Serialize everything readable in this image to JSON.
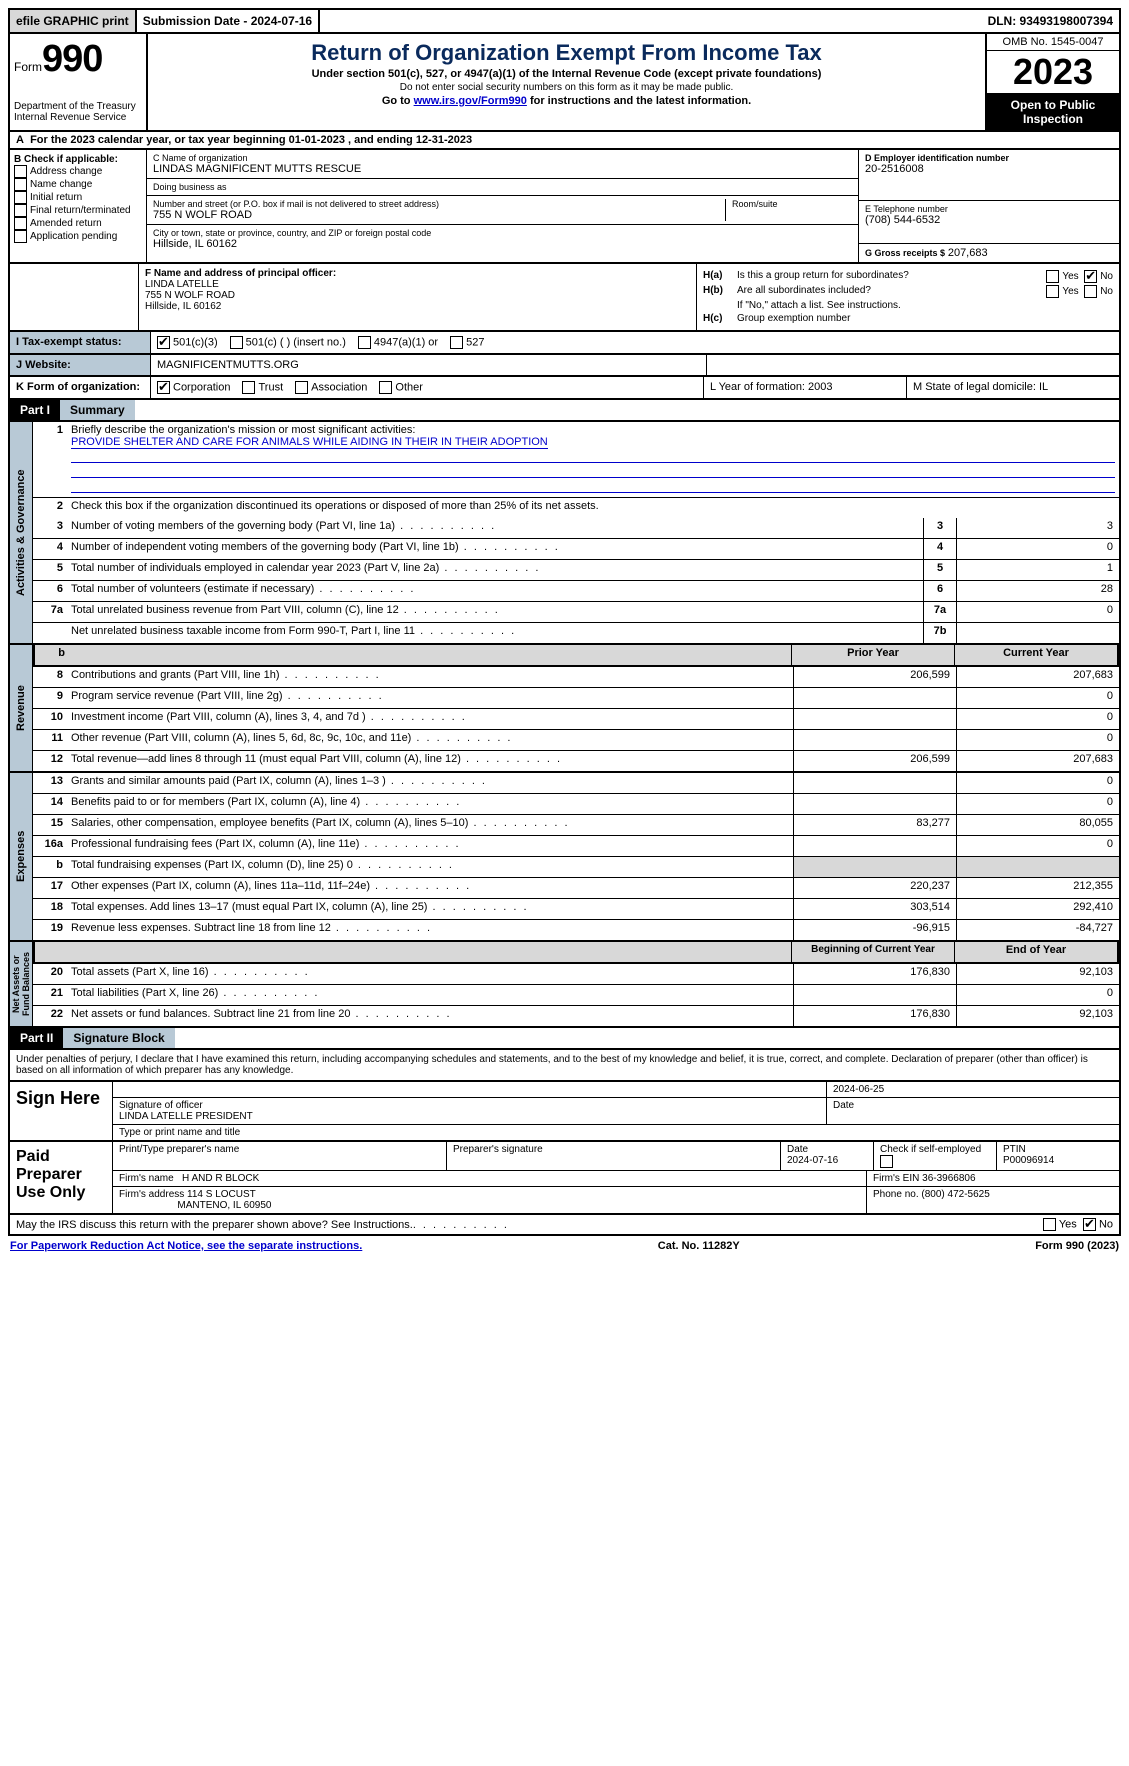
{
  "topbar": {
    "efile": "efile GRAPHIC print",
    "submission": "Submission Date - 2024-07-16",
    "dln": "DLN: 93493198007394"
  },
  "header": {
    "form_label": "Form",
    "form_number": "990",
    "dept": "Department of the Treasury",
    "irs": "Internal Revenue Service",
    "title": "Return of Organization Exempt From Income Tax",
    "sub1": "Under section 501(c), 527, or 4947(a)(1) of the Internal Revenue Code (except private foundations)",
    "sub2": "Do not enter social security numbers on this form as it may be made public.",
    "sub3_pre": "Go to ",
    "sub3_link": "www.irs.gov/Form990",
    "sub3_post": " for instructions and the latest information.",
    "omb": "OMB No. 1545-0047",
    "year": "2023",
    "open": "Open to Public Inspection"
  },
  "line_a": "For the 2023 calendar year, or tax year beginning 01-01-2023   , and ending 12-31-2023",
  "box_b": {
    "title": "B Check if applicable:",
    "opts": [
      "Address change",
      "Name change",
      "Initial return",
      "Final return/terminated",
      "Amended return",
      "Application pending"
    ]
  },
  "box_c": {
    "name_lbl": "C Name of organization",
    "name": "LINDAS MAGNIFICENT MUTTS RESCUE",
    "dba_lbl": "Doing business as",
    "dba": "",
    "street_lbl": "Number and street (or P.O. box if mail is not delivered to street address)",
    "street": "755 N WOLF ROAD",
    "room_lbl": "Room/suite",
    "city_lbl": "City or town, state or province, country, and ZIP or foreign postal code",
    "city": "Hillside, IL  60162"
  },
  "box_d": {
    "lbl": "D Employer identification number",
    "val": "20-2516008"
  },
  "box_e": {
    "lbl": "E Telephone number",
    "val": "(708) 544-6532"
  },
  "box_g": {
    "lbl": "G Gross receipts $",
    "val": "207,683"
  },
  "box_f": {
    "lbl": "F  Name and address of principal officer:",
    "name": "LINDA LATELLE",
    "street": "755 N WOLF ROAD",
    "city": "Hillside, IL  60162"
  },
  "box_h": {
    "a_lbl": "H(a)",
    "a_txt": "Is this a group return for subordinates?",
    "a_no_checked": true,
    "b_lbl": "H(b)",
    "b_txt": "Are all subordinates included?",
    "b_note": "If \"No,\" attach a list. See instructions.",
    "c_lbl": "H(c)",
    "c_txt": "Group exemption number"
  },
  "row_i": {
    "lbl": "I  Tax-exempt status:",
    "c3": "501(c)(3)",
    "c": "501(c) (  ) (insert no.)",
    "a4947": "4947(a)(1) or",
    "c527": "527"
  },
  "row_j": {
    "lbl": "J  Website:",
    "val": "MAGNIFICENTMUTTS.ORG"
  },
  "row_k": {
    "lbl": "K Form of organization:",
    "corp": "Corporation",
    "trust": "Trust",
    "assoc": "Association",
    "other": "Other",
    "l": "L Year of formation: 2003",
    "m": "M State of legal domicile: IL"
  },
  "part1": {
    "hdr": "Part I",
    "title": "Summary"
  },
  "summary": {
    "s1_lbl": "Briefly describe the organization's mission or most significant activities:",
    "s1_val": "PROVIDE SHELTER AND CARE FOR ANIMALS WHILE AIDING IN THEIR IN THEIR ADOPTION",
    "s2": "Check this box    if the organization discontinued its operations or disposed of more than 25% of its net assets.",
    "lines_a": [
      {
        "n": "3",
        "d": "Number of voting members of the governing body (Part VI, line 1a)",
        "m": "3",
        "v": "3"
      },
      {
        "n": "4",
        "d": "Number of independent voting members of the governing body (Part VI, line 1b)",
        "m": "4",
        "v": "0"
      },
      {
        "n": "5",
        "d": "Total number of individuals employed in calendar year 2023 (Part V, line 2a)",
        "m": "5",
        "v": "1"
      },
      {
        "n": "6",
        "d": "Total number of volunteers (estimate if necessary)",
        "m": "6",
        "v": "28"
      },
      {
        "n": "7a",
        "d": "Total unrelated business revenue from Part VIII, column (C), line 12",
        "m": "7a",
        "v": "0"
      },
      {
        "n": "",
        "d": "Net unrelated business taxable income from Form 990-T, Part I, line 11",
        "m": "7b",
        "v": ""
      }
    ],
    "col_hdr": {
      "c1": "Prior Year",
      "c2": "Current Year"
    },
    "revenue": [
      {
        "n": "8",
        "d": "Contributions and grants (Part VIII, line 1h)",
        "c1": "206,599",
        "c2": "207,683"
      },
      {
        "n": "9",
        "d": "Program service revenue (Part VIII, line 2g)",
        "c1": "",
        "c2": "0"
      },
      {
        "n": "10",
        "d": "Investment income (Part VIII, column (A), lines 3, 4, and 7d )",
        "c1": "",
        "c2": "0"
      },
      {
        "n": "11",
        "d": "Other revenue (Part VIII, column (A), lines 5, 6d, 8c, 9c, 10c, and 11e)",
        "c1": "",
        "c2": "0"
      },
      {
        "n": "12",
        "d": "Total revenue—add lines 8 through 11 (must equal Part VIII, column (A), line 12)",
        "c1": "206,599",
        "c2": "207,683"
      }
    ],
    "expenses": [
      {
        "n": "13",
        "d": "Grants and similar amounts paid (Part IX, column (A), lines 1–3 )",
        "c1": "",
        "c2": "0"
      },
      {
        "n": "14",
        "d": "Benefits paid to or for members (Part IX, column (A), line 4)",
        "c1": "",
        "c2": "0"
      },
      {
        "n": "15",
        "d": "Salaries, other compensation, employee benefits (Part IX, column (A), lines 5–10)",
        "c1": "83,277",
        "c2": "80,055"
      },
      {
        "n": "16a",
        "d": "Professional fundraising fees (Part IX, column (A), line 11e)",
        "c1": "",
        "c2": "0"
      },
      {
        "n": "b",
        "d": "Total fundraising expenses (Part IX, column (D), line 25) 0",
        "c1": "shade",
        "c2": "shade"
      },
      {
        "n": "17",
        "d": "Other expenses (Part IX, column (A), lines 11a–11d, 11f–24e)",
        "c1": "220,237",
        "c2": "212,355"
      },
      {
        "n": "18",
        "d": "Total expenses. Add lines 13–17 (must equal Part IX, column (A), line 25)",
        "c1": "303,514",
        "c2": "292,410"
      },
      {
        "n": "19",
        "d": "Revenue less expenses. Subtract line 18 from line 12",
        "c1": "-96,915",
        "c2": "-84,727"
      }
    ],
    "na_hdr": {
      "c1": "Beginning of Current Year",
      "c2": "End of Year"
    },
    "netassets": [
      {
        "n": "20",
        "d": "Total assets (Part X, line 16)",
        "c1": "176,830",
        "c2": "92,103"
      },
      {
        "n": "21",
        "d": "Total liabilities (Part X, line 26)",
        "c1": "",
        "c2": "0"
      },
      {
        "n": "22",
        "d": "Net assets or fund balances. Subtract line 21 from line 20",
        "c1": "176,830",
        "c2": "92,103"
      }
    ]
  },
  "part2": {
    "hdr": "Part II",
    "title": "Signature Block"
  },
  "sig_intro": "Under penalties of perjury, I declare that I have examined this return, including accompanying schedules and statements, and to the best of my knowledge and belief, it is true, correct, and complete. Declaration of preparer (other than officer) is based on all information of which preparer has any knowledge.",
  "sign_here": {
    "lbl": "Sign Here",
    "date": "2024-06-25",
    "sig_lbl": "Signature of officer",
    "name": "LINDA LATELLE  PRESIDENT",
    "name_lbl": "Type or print name and title",
    "date_lbl": "Date"
  },
  "paid_prep": {
    "lbl": "Paid Preparer Use Only",
    "r1": {
      "c1_lbl": "Print/Type preparer's name",
      "c2_lbl": "Preparer's signature",
      "c3_lbl": "Date",
      "c3": "2024-07-16",
      "c4_lbl": "Check      if self-employed",
      "c5_lbl": "PTIN",
      "c5": "P00096914"
    },
    "r2": {
      "c1_lbl": "Firm's name",
      "c1": "H AND R BLOCK",
      "c2_lbl": "Firm's EIN",
      "c2": "36-3966806"
    },
    "r3": {
      "c1_lbl": "Firm's address",
      "c1a": "114 S LOCUST",
      "c1b": "MANTENO, IL  60950",
      "c2_lbl": "Phone no.",
      "c2": "(800) 472-5625"
    }
  },
  "discuss": "May the IRS discuss this return with the preparer shown above? See Instructions.",
  "footer": {
    "left": "For Paperwork Reduction Act Notice, see the separate instructions.",
    "mid": "Cat. No. 11282Y",
    "right": "Form 990 (2023)"
  },
  "yes": "Yes",
  "no": "No"
}
